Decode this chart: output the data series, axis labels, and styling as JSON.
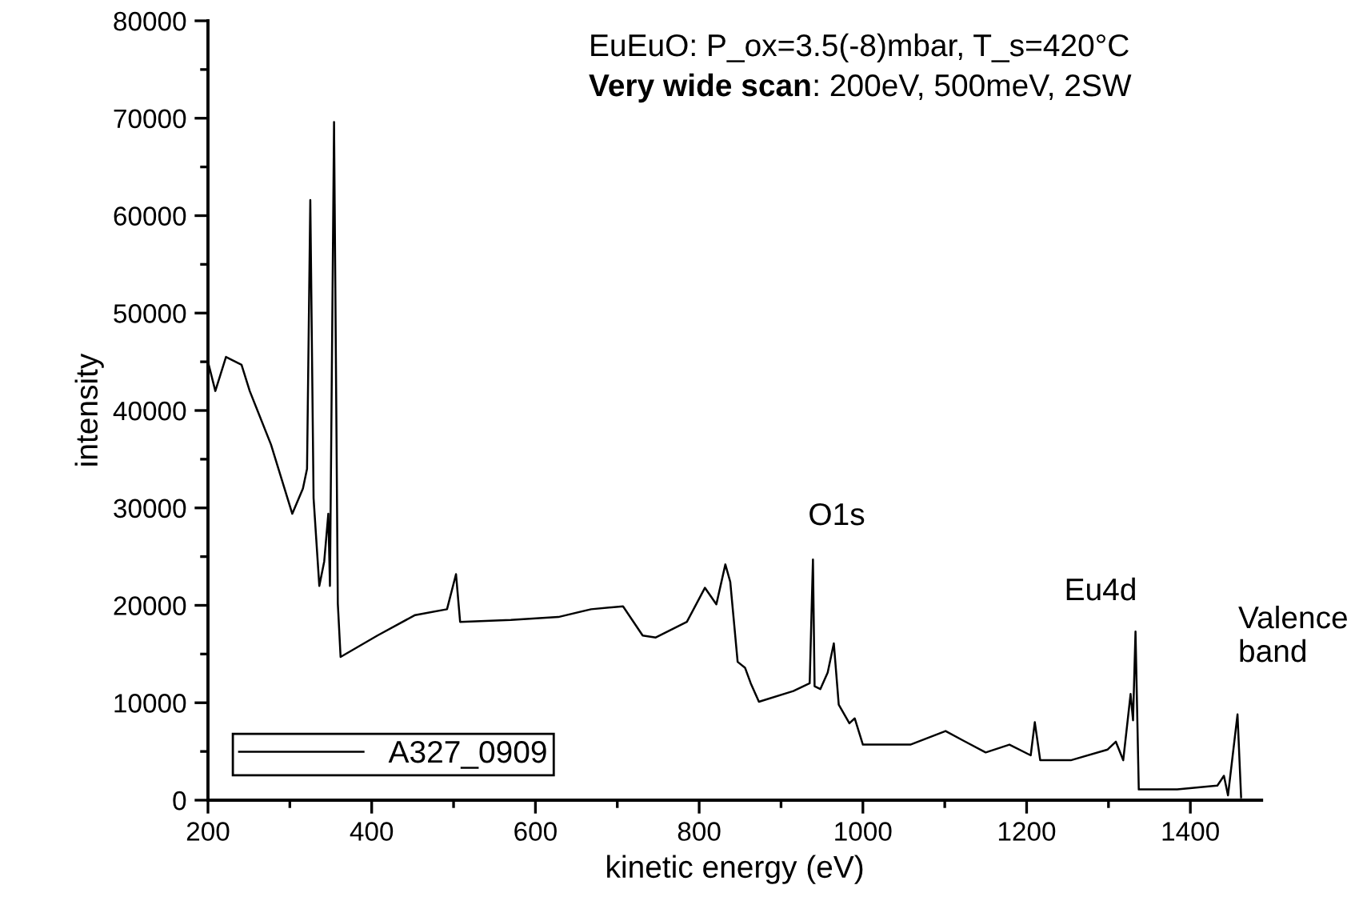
{
  "chart_data": {
    "type": "line",
    "title": "EuEuO: P_ox=3.5(-8)mbar, T_s=420°C",
    "subtitle": "Very wide scan: 200eV, 500meV, 2SW",
    "xlabel": "kinetic energy (eV)",
    "ylabel": "intensity",
    "series": [
      {
        "name": "A327_0909",
        "color": "#000000",
        "x": [
          200,
          209,
          222,
          241,
          251,
          277,
          303,
          316,
          321,
          325,
          329,
          336,
          342,
          347,
          349,
          354,
          358.6,
          362,
          407,
          453,
          492,
          503,
          508,
          570,
          628,
          668,
          707,
          731,
          747,
          785,
          807,
          821,
          832,
          838,
          847,
          856,
          863,
          873,
          915,
          935,
          939,
          941,
          948,
          957,
          964.5,
          970.5,
          983.5,
          990,
          1000,
          1058,
          1101,
          1123,
          1150,
          1179,
          1205,
          1210,
          1216.6,
          1254,
          1299,
          1309,
          1318,
          1327,
          1330,
          1333,
          1337,
          1384,
          1433,
          1441,
          1446,
          1457.6,
          1462
        ],
        "values": [
          45000,
          42000,
          45500,
          44700,
          42000,
          36500,
          29400,
          32000,
          34000,
          61600,
          31000,
          22000,
          24500,
          29400,
          22000,
          69600,
          20200,
          14700,
          16900,
          19000,
          19600,
          23200,
          18300,
          18500,
          18800,
          19600,
          19900,
          16900,
          16700,
          18300,
          21800,
          20100,
          24200,
          22400,
          14200,
          13600,
          12000,
          10100,
          11200,
          12000,
          24700,
          11700,
          11400,
          13100,
          16100,
          9800,
          7900,
          8400,
          5700,
          5700,
          7100,
          6100,
          4900,
          5700,
          4600,
          8000,
          4100,
          4100,
          5200,
          6000,
          4100,
          10900,
          8200,
          17300,
          1100,
          1100,
          1500,
          2500,
          500,
          8800,
          300
        ]
      }
    ],
    "xlim": [
      200,
      1487
    ],
    "xticks": [
      200,
      400,
      600,
      800,
      1000,
      1200,
      1400
    ],
    "ylim": [
      0,
      80000
    ],
    "yticks": [
      0,
      10000,
      20000,
      30000,
      40000,
      50000,
      60000,
      70000,
      80000
    ],
    "annotations": [
      "O1s",
      "Eu4d",
      "Valence\nband"
    ],
    "grid": false,
    "legend": "bottom left",
    "marker": "none",
    "line_style": "solid"
  }
}
